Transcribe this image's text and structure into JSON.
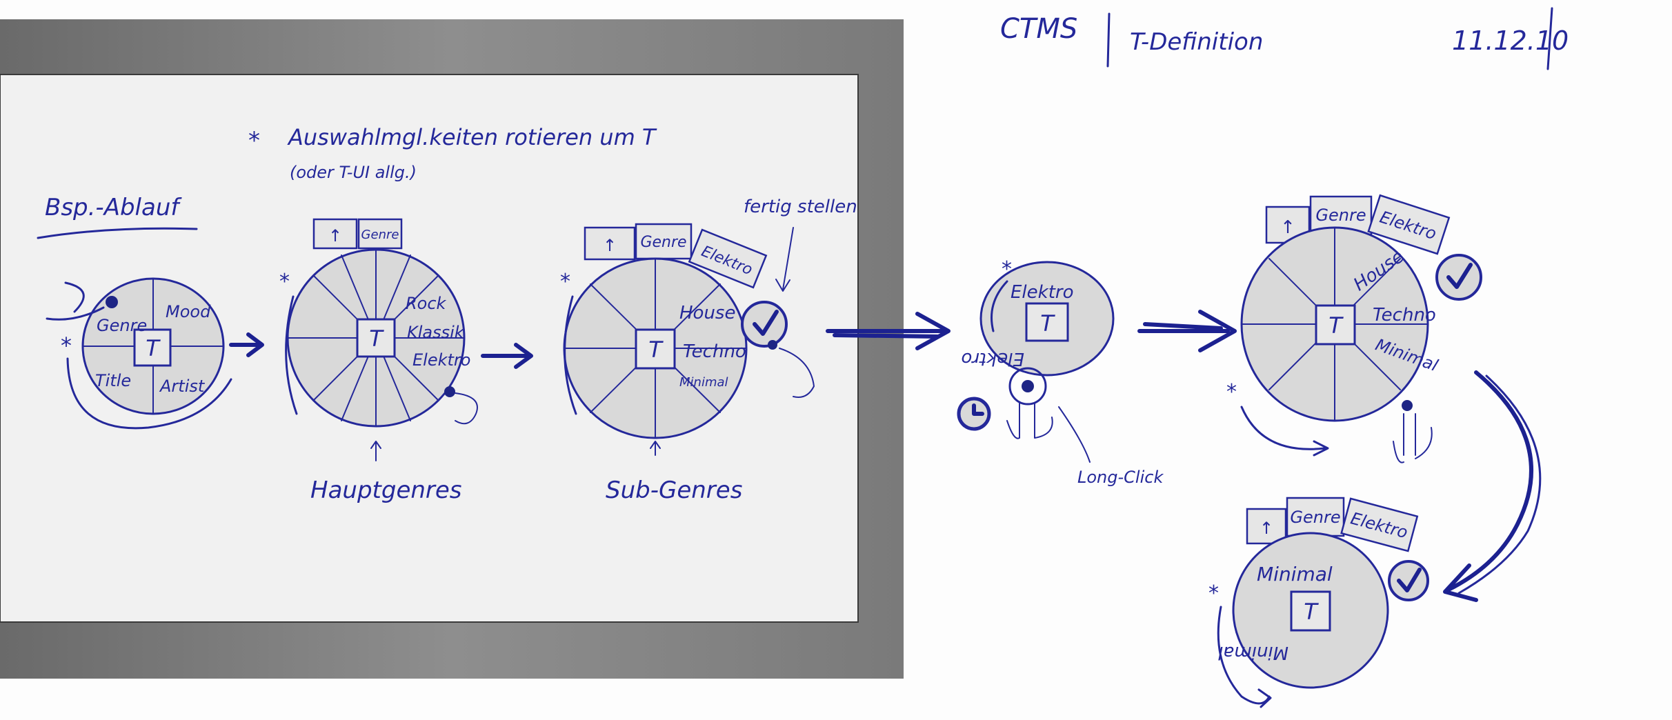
{
  "header": {
    "title_left": "CTMS",
    "title_right": "T-Definition",
    "date": "11.12.10"
  },
  "board": {
    "heading": "Bsp.-Ablauf",
    "note_line1": "Auswahlmgl.keiten rotieren um T",
    "note_line2": "(oder T-UI allg.)",
    "center_label": "T",
    "wheel1_segments": [
      "Genre",
      "Mood",
      "Title",
      "Artist"
    ],
    "wheel2_tabs": [
      "↑",
      "Genre"
    ],
    "wheel2_segments": [
      "Rock",
      "Klassik",
      "Elektro"
    ],
    "wheel2_caption": "Hauptgenres",
    "wheel3_tabs": [
      "↑",
      "Genre",
      "Elektro"
    ],
    "wheel3_segments": [
      "House",
      "Techno",
      "Minimal"
    ],
    "wheel3_caption": "Sub-Genres",
    "done_label": "fertig stellen"
  },
  "right": {
    "small_wheel_top": "Elektro",
    "small_wheel_bottom": "Elektro",
    "longclick_label": "Long-Click",
    "wheel4_tabs": [
      "↑",
      "Genre",
      "Elektro"
    ],
    "wheel4_segments": [
      "House",
      "Techno",
      "Minimal"
    ],
    "wheel5_tabs": [
      "↑",
      "Genre",
      "Elektro"
    ],
    "wheel5_top": "Minimal",
    "wheel5_bottom": "Minimal"
  }
}
